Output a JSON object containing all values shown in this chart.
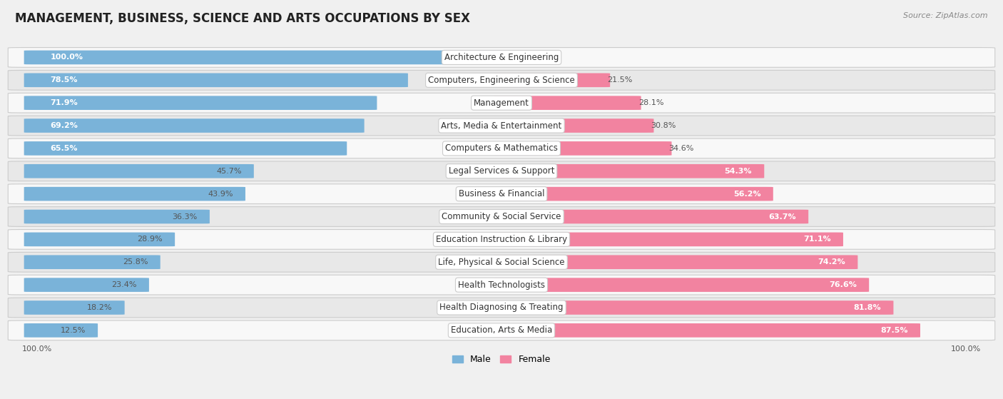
{
  "title": "MANAGEMENT, BUSINESS, SCIENCE AND ARTS OCCUPATIONS BY SEX",
  "source": "Source: ZipAtlas.com",
  "categories": [
    "Architecture & Engineering",
    "Computers, Engineering & Science",
    "Management",
    "Arts, Media & Entertainment",
    "Computers & Mathematics",
    "Legal Services & Support",
    "Business & Financial",
    "Community & Social Service",
    "Education Instruction & Library",
    "Life, Physical & Social Science",
    "Health Technologists",
    "Health Diagnosing & Treating",
    "Education, Arts & Media"
  ],
  "male_pct": [
    100.0,
    78.5,
    71.9,
    69.2,
    65.5,
    45.7,
    43.9,
    36.3,
    28.9,
    25.8,
    23.4,
    18.2,
    12.5
  ],
  "female_pct": [
    0.0,
    21.5,
    28.1,
    30.8,
    34.6,
    54.3,
    56.2,
    63.7,
    71.1,
    74.2,
    76.6,
    81.8,
    87.5
  ],
  "male_color": "#7ab3d9",
  "female_color": "#f283a0",
  "bg_color": "#f0f0f0",
  "row_bg_even": "#f8f8f8",
  "row_bg_odd": "#e8e8e8",
  "title_fontsize": 12,
  "label_fontsize": 8.5,
  "pct_fontsize": 8,
  "legend_fontsize": 9,
  "source_fontsize": 8
}
